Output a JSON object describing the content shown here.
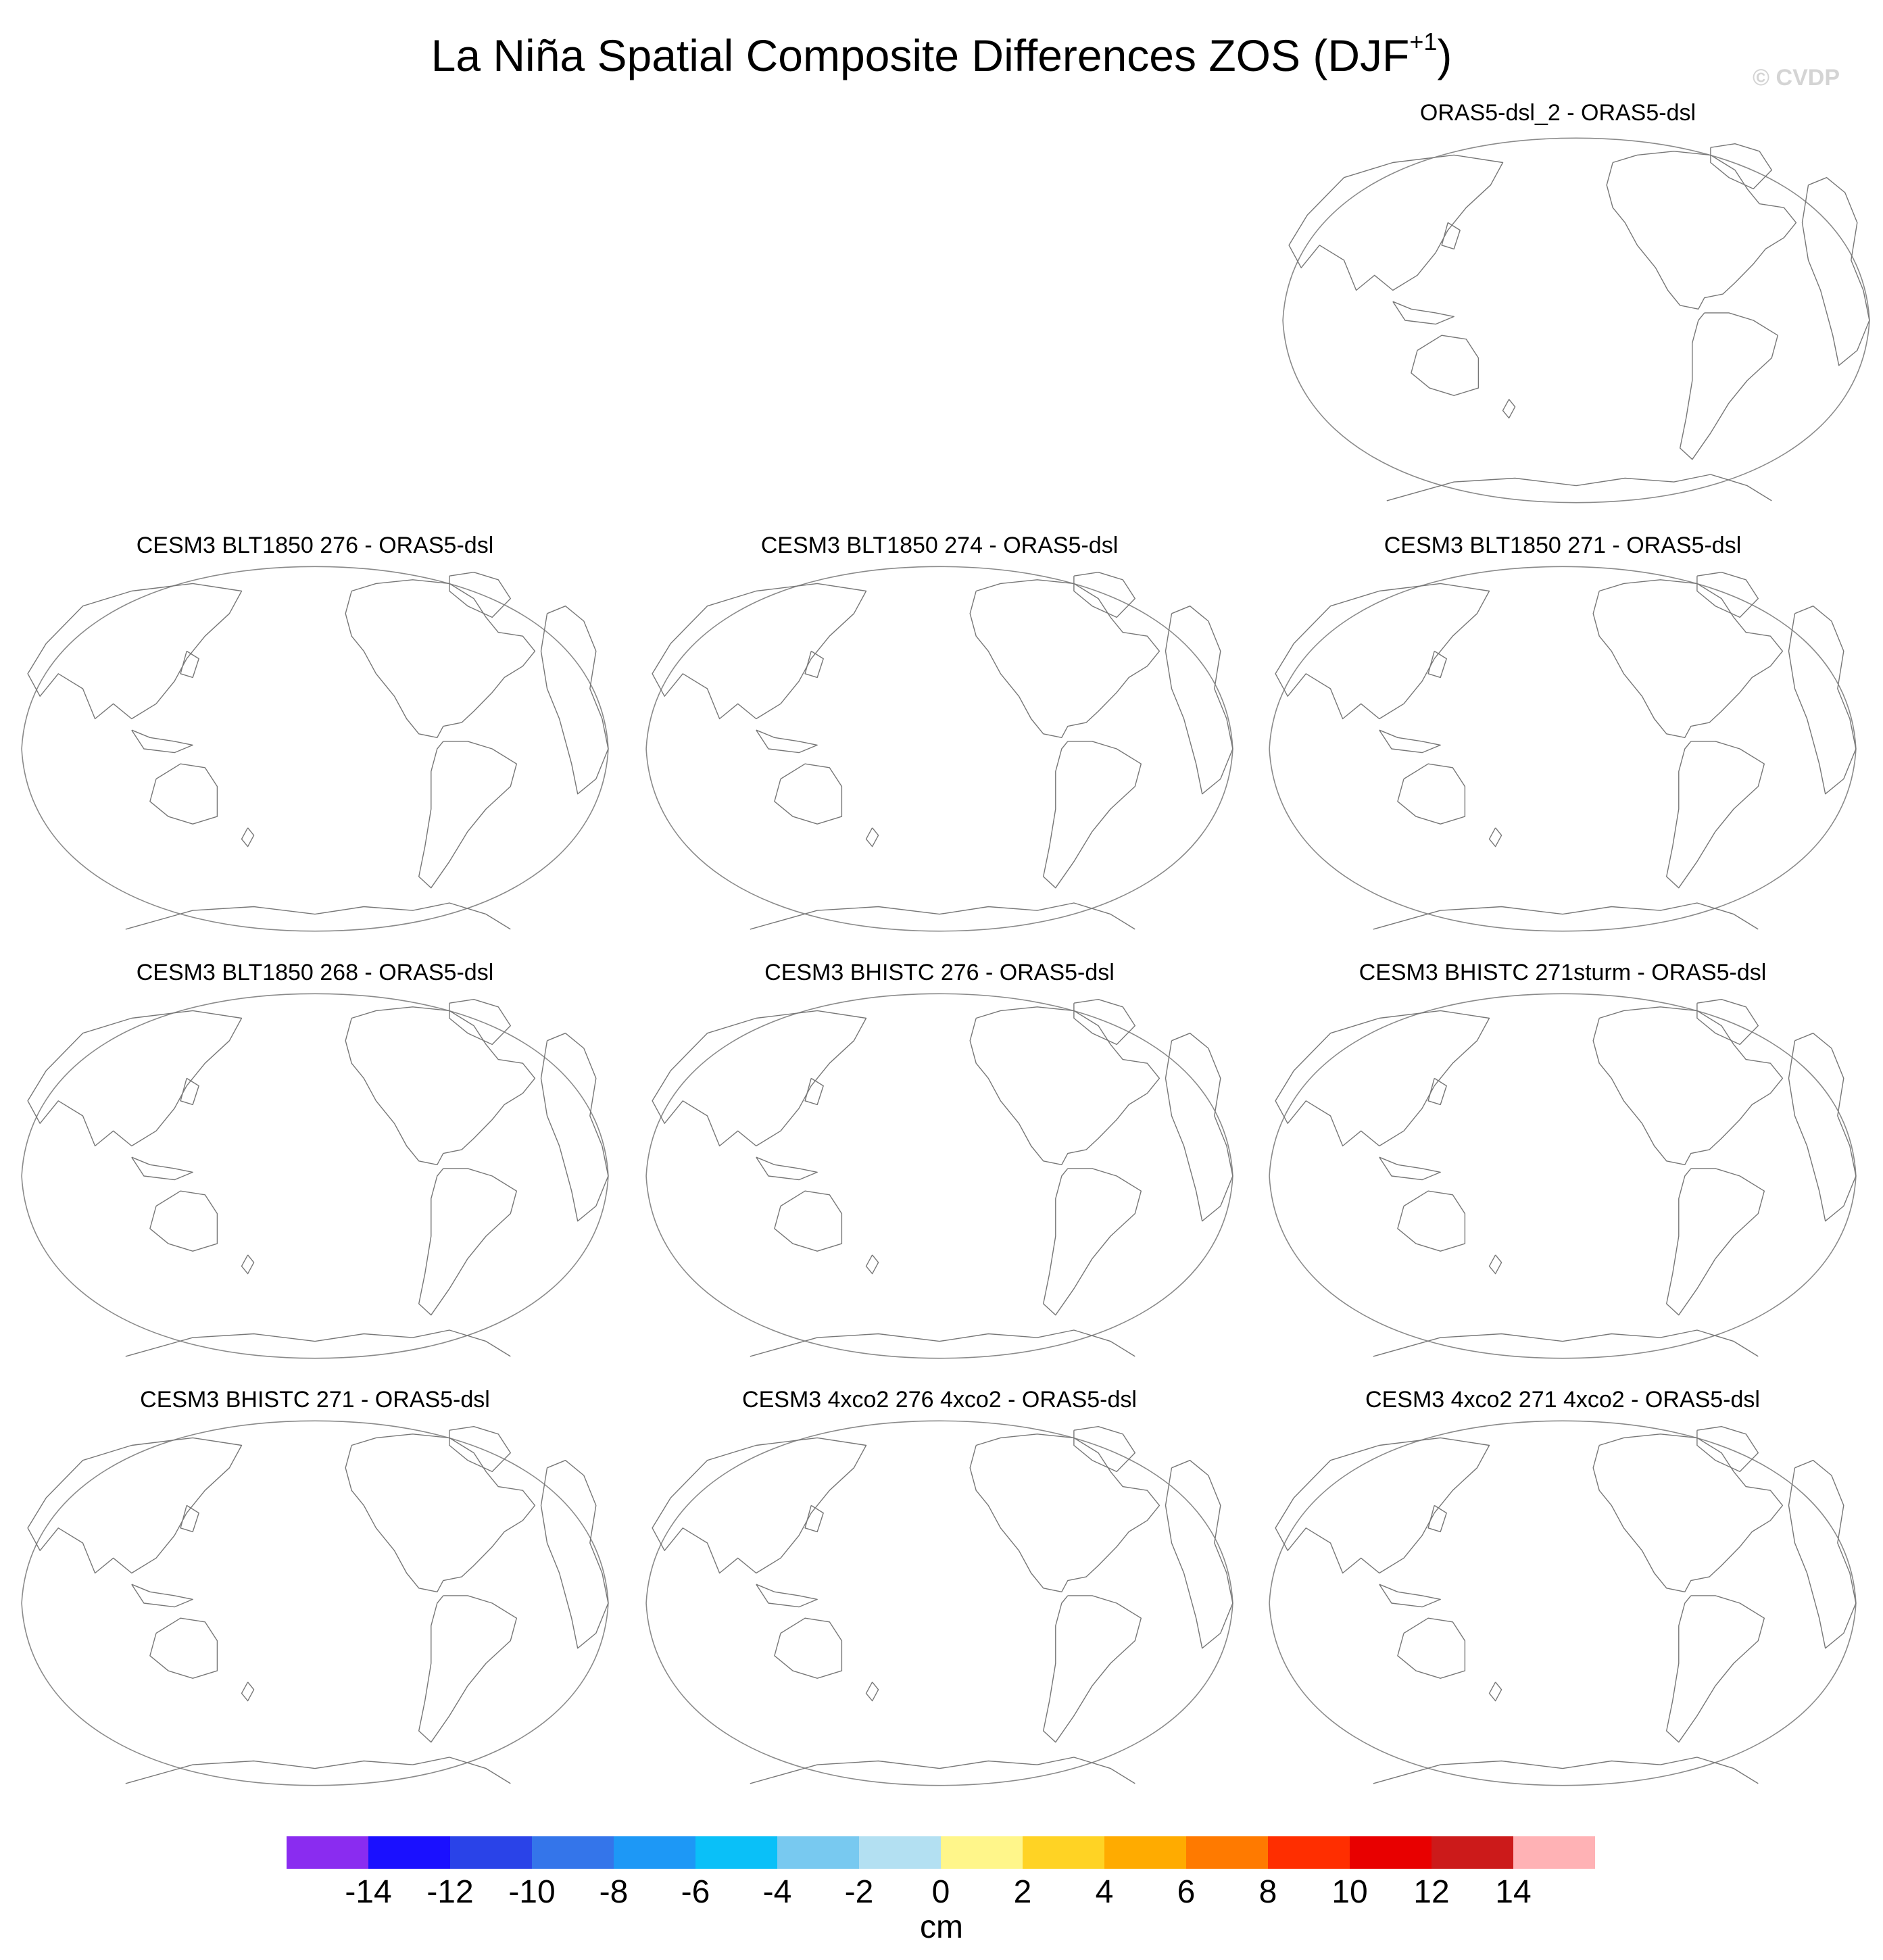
{
  "title": "La Niña Spatial Composite Differences ZOS (DJF",
  "title_superscript": "+1",
  "title_close": ")",
  "watermark": "© CVDP",
  "panels": [
    {
      "label": "ORAS5-dsl_2 - ORAS5-dsl",
      "coastline_color": "#777777"
    },
    {
      "label": "CESM3 BLT1850 276 - ORAS5-dsl",
      "coastline_color": "#777777"
    },
    {
      "label": "CESM3 BLT1850 274 - ORAS5-dsl",
      "coastline_color": "#777777"
    },
    {
      "label": "CESM3 BLT1850 271 - ORAS5-dsl",
      "coastline_color": "#777777"
    },
    {
      "label": "CESM3 BLT1850 268 - ORAS5-dsl",
      "coastline_color": "#777777"
    },
    {
      "label": "CESM3 BHISTC 276 - ORAS5-dsl",
      "coastline_color": "#777777"
    },
    {
      "label": "CESM3 BHISTC 271sturm - ORAS5-dsl",
      "coastline_color": "#777777"
    },
    {
      "label": "CESM3 BHISTC 271 - ORAS5-dsl",
      "coastline_color": "#777777"
    },
    {
      "label": "CESM3 4xco2 276 4xco2 - ORAS5-dsl",
      "coastline_color": "#777777"
    },
    {
      "label": "CESM3 4xco2 271 4xco2 - ORAS5-dsl",
      "coastline_color": "#777777"
    }
  ],
  "colorbar": {
    "units": "cm",
    "colors": [
      "#8a2cf0",
      "#1a10ff",
      "#2a43e8",
      "#3475ea",
      "#1d98f6",
      "#0ac0f8",
      "#78c9f0",
      "#b3e0f2",
      "#fff68a",
      "#ffd324",
      "#ffab00",
      "#ff7a00",
      "#ff2e00",
      "#e80000",
      "#cc1a1a",
      "#ffb2b5"
    ],
    "tick_labels": [
      "-14",
      "-12",
      "-10",
      "-8",
      "-6",
      "-4",
      "-2",
      "0",
      "2",
      "4",
      "6",
      "8",
      "10",
      "12",
      "14"
    ]
  }
}
